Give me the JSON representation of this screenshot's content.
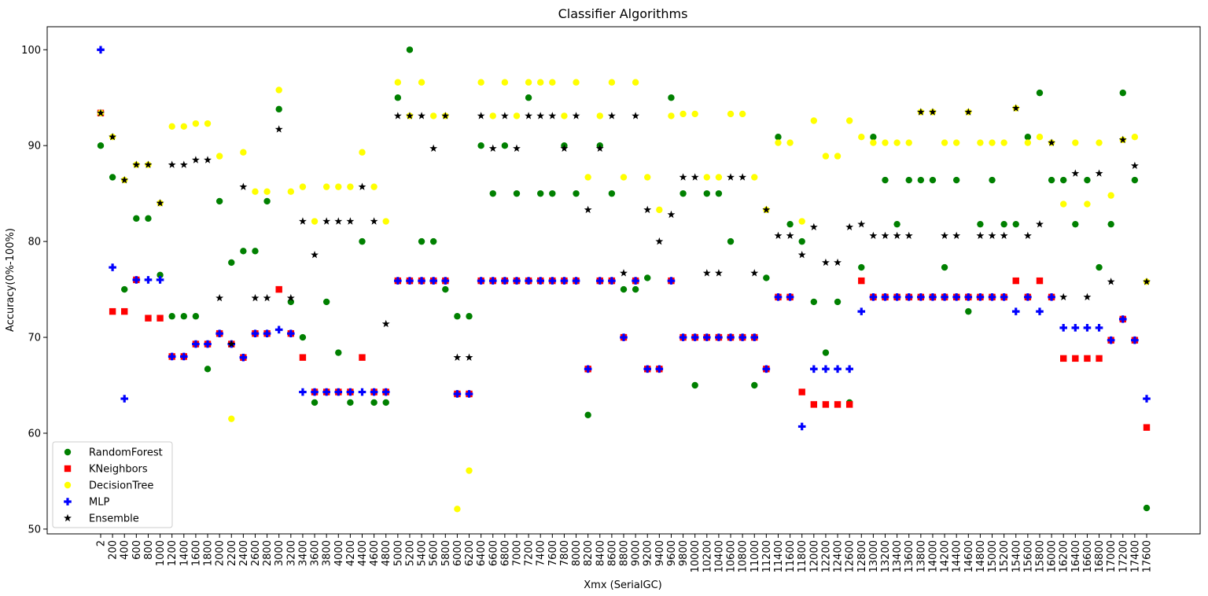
{
  "chart_data": {
    "type": "scatter",
    "title": "Classifier Algorithms",
    "xlabel": "Xmx (SerialGC)",
    "ylabel": "Accuracy(0%-100%)",
    "ylim": [
      49.5,
      102.4
    ],
    "yticks": [
      50,
      60,
      70,
      80,
      90,
      100
    ],
    "grid": false,
    "legend_position": "lower-left",
    "categories": [
      "2",
      "200",
      "400",
      "600",
      "800",
      "1000",
      "1200",
      "1400",
      "1600",
      "1800",
      "2000",
      "2200",
      "2400",
      "2600",
      "2800",
      "3000",
      "3200",
      "3400",
      "3600",
      "3800",
      "4000",
      "4200",
      "4400",
      "4600",
      "4800",
      "5000",
      "5200",
      "5400",
      "5600",
      "5800",
      "6000",
      "6200",
      "6400",
      "6600",
      "6800",
      "7000",
      "7200",
      "7400",
      "7600",
      "7800",
      "8000",
      "8200",
      "8400",
      "8600",
      "8800",
      "9000",
      "9200",
      "9400",
      "9600",
      "9800",
      "10000",
      "10200",
      "10400",
      "10600",
      "10800",
      "11000",
      "11200",
      "11400",
      "11600",
      "11800",
      "12000",
      "12200",
      "12400",
      "12600",
      "12800",
      "13000",
      "13200",
      "13400",
      "13600",
      "13800",
      "14000",
      "14200",
      "14400",
      "14600",
      "14800",
      "15000",
      "15200",
      "15400",
      "15600",
      "15800",
      "16000",
      "16200",
      "16400",
      "16600",
      "16800",
      "17000",
      "17200",
      "17400",
      "17600"
    ],
    "series": [
      {
        "name": "RandomForest",
        "marker": "circle",
        "color": "#008000",
        "values": [
          90,
          86.7,
          75,
          82.4,
          82.4,
          76.5,
          72.2,
          72.2,
          72.2,
          66.7,
          84.2,
          77.8,
          79,
          79,
          84.2,
          93.8,
          73.7,
          70,
          63.2,
          73.7,
          68.4,
          63.2,
          80,
          63.2,
          63.2,
          95,
          100,
          80,
          80,
          75,
          72.2,
          72.2,
          90,
          85,
          90,
          85,
          95,
          85,
          85,
          90,
          85,
          61.9,
          90,
          85,
          75,
          75,
          76.2,
          null,
          95,
          85,
          65,
          85,
          85,
          80,
          null,
          65,
          76.2,
          90.9,
          81.8,
          80,
          73.7,
          68.4,
          73.7,
          63.2,
          77.3,
          90.9,
          86.4,
          81.8,
          86.4,
          86.4,
          86.4,
          77.3,
          86.4,
          72.7,
          81.8,
          86.4,
          81.8,
          81.8,
          90.9,
          95.5,
          86.4,
          86.4,
          81.8,
          86.4,
          77.3,
          81.8,
          95.5,
          86.4,
          52.2
        ]
      },
      {
        "name": "KNeighbors",
        "marker": "square",
        "color": "#ff0000",
        "values": [
          93.4,
          72.7,
          72.7,
          76,
          72,
          72,
          68,
          68,
          69.3,
          69.3,
          70.4,
          69.3,
          67.9,
          70.4,
          70.4,
          75,
          70.4,
          67.9,
          64.3,
          64.3,
          64.3,
          64.3,
          67.9,
          64.3,
          64.3,
          75.9,
          75.9,
          75.9,
          75.9,
          75.9,
          64.1,
          64.1,
          75.9,
          75.9,
          75.9,
          75.9,
          75.9,
          75.9,
          75.9,
          75.9,
          75.9,
          66.7,
          75.9,
          75.9,
          70,
          75.9,
          66.7,
          66.7,
          75.9,
          70,
          70,
          70,
          70,
          70,
          70,
          70,
          66.7,
          74.2,
          74.2,
          64.3,
          63,
          63,
          63,
          63,
          75.9,
          74.2,
          74.2,
          74.2,
          74.2,
          74.2,
          74.2,
          74.2,
          74.2,
          74.2,
          74.2,
          74.2,
          74.2,
          75.9,
          74.2,
          75.9,
          74.2,
          67.8,
          67.8,
          67.8,
          67.8,
          69.7,
          71.9,
          69.7,
          60.6
        ]
      },
      {
        "name": "DecisionTree",
        "marker": "circle",
        "color": "#ffff00",
        "values": [
          93.4,
          90.9,
          86.4,
          88,
          88,
          84,
          92,
          92,
          92.3,
          92.3,
          88.9,
          61.5,
          89.3,
          85.2,
          85.2,
          95.8,
          85.2,
          85.7,
          82.1,
          85.7,
          85.7,
          85.7,
          89.3,
          85.7,
          82.1,
          96.6,
          93.1,
          96.6,
          93.1,
          93.1,
          52.1,
          56.1,
          96.6,
          93.1,
          96.6,
          93.1,
          96.6,
          96.6,
          96.6,
          93.1,
          96.6,
          86.7,
          93.1,
          96.6,
          86.7,
          96.6,
          86.7,
          83.3,
          93.1,
          93.3,
          93.3,
          86.7,
          86.7,
          93.3,
          93.3,
          86.7,
          83.3,
          90.3,
          90.3,
          82.1,
          92.6,
          88.9,
          88.9,
          92.6,
          90.9,
          90.3,
          90.3,
          90.3,
          90.3,
          93.5,
          93.5,
          90.3,
          90.3,
          93.5,
          90.3,
          90.3,
          90.3,
          93.9,
          90.3,
          90.9,
          90.3,
          83.9,
          90.3,
          83.9,
          90.3,
          84.8,
          90.6,
          90.9,
          75.8
        ]
      },
      {
        "name": "MLP",
        "marker": "plus",
        "color": "#0000ff",
        "values": [
          100,
          77.3,
          63.6,
          76,
          76,
          76,
          68,
          68,
          69.3,
          69.3,
          70.4,
          69.3,
          67.9,
          70.4,
          70.4,
          70.8,
          70.4,
          64.3,
          64.3,
          64.3,
          64.3,
          64.3,
          64.3,
          64.3,
          64.3,
          75.9,
          75.9,
          75.9,
          75.9,
          75.9,
          64.1,
          64.1,
          75.9,
          75.9,
          75.9,
          75.9,
          75.9,
          75.9,
          75.9,
          75.9,
          75.9,
          66.7,
          75.9,
          75.9,
          70,
          75.9,
          66.7,
          66.7,
          75.9,
          70,
          70,
          70,
          70,
          70,
          70,
          70,
          66.7,
          74.2,
          74.2,
          60.7,
          66.7,
          66.7,
          66.7,
          66.7,
          72.7,
          74.2,
          74.2,
          74.2,
          74.2,
          74.2,
          74.2,
          74.2,
          74.2,
          74.2,
          74.2,
          74.2,
          74.2,
          72.7,
          74.2,
          72.7,
          74.2,
          71,
          71,
          71,
          71,
          69.7,
          71.9,
          69.7,
          63.6
        ]
      },
      {
        "name": "Ensemble",
        "marker": "star",
        "color": "#000000",
        "values": [
          93.4,
          90.9,
          86.4,
          88,
          88,
          84,
          88,
          88,
          88.5,
          88.5,
          74.1,
          69.3,
          85.7,
          74.1,
          74.1,
          91.7,
          74.1,
          82.1,
          78.6,
          82.1,
          82.1,
          82.1,
          85.7,
          82.1,
          71.4,
          93.1,
          93.1,
          93.1,
          89.7,
          93.1,
          67.9,
          67.9,
          93.1,
          89.7,
          93.1,
          89.7,
          93.1,
          93.1,
          93.1,
          89.7,
          93.1,
          83.3,
          89.7,
          93.1,
          76.7,
          93.1,
          83.3,
          80,
          82.8,
          86.7,
          86.7,
          76.7,
          76.7,
          86.7,
          86.7,
          76.7,
          83.3,
          80.6,
          80.6,
          78.6,
          81.5,
          77.8,
          77.8,
          81.5,
          81.8,
          80.6,
          80.6,
          80.6,
          80.6,
          93.5,
          93.5,
          80.6,
          80.6,
          93.5,
          80.6,
          80.6,
          80.6,
          93.9,
          80.6,
          81.8,
          90.3,
          74.2,
          87.1,
          74.2,
          87.1,
          75.8,
          90.6,
          87.9,
          75.8
        ]
      }
    ]
  }
}
